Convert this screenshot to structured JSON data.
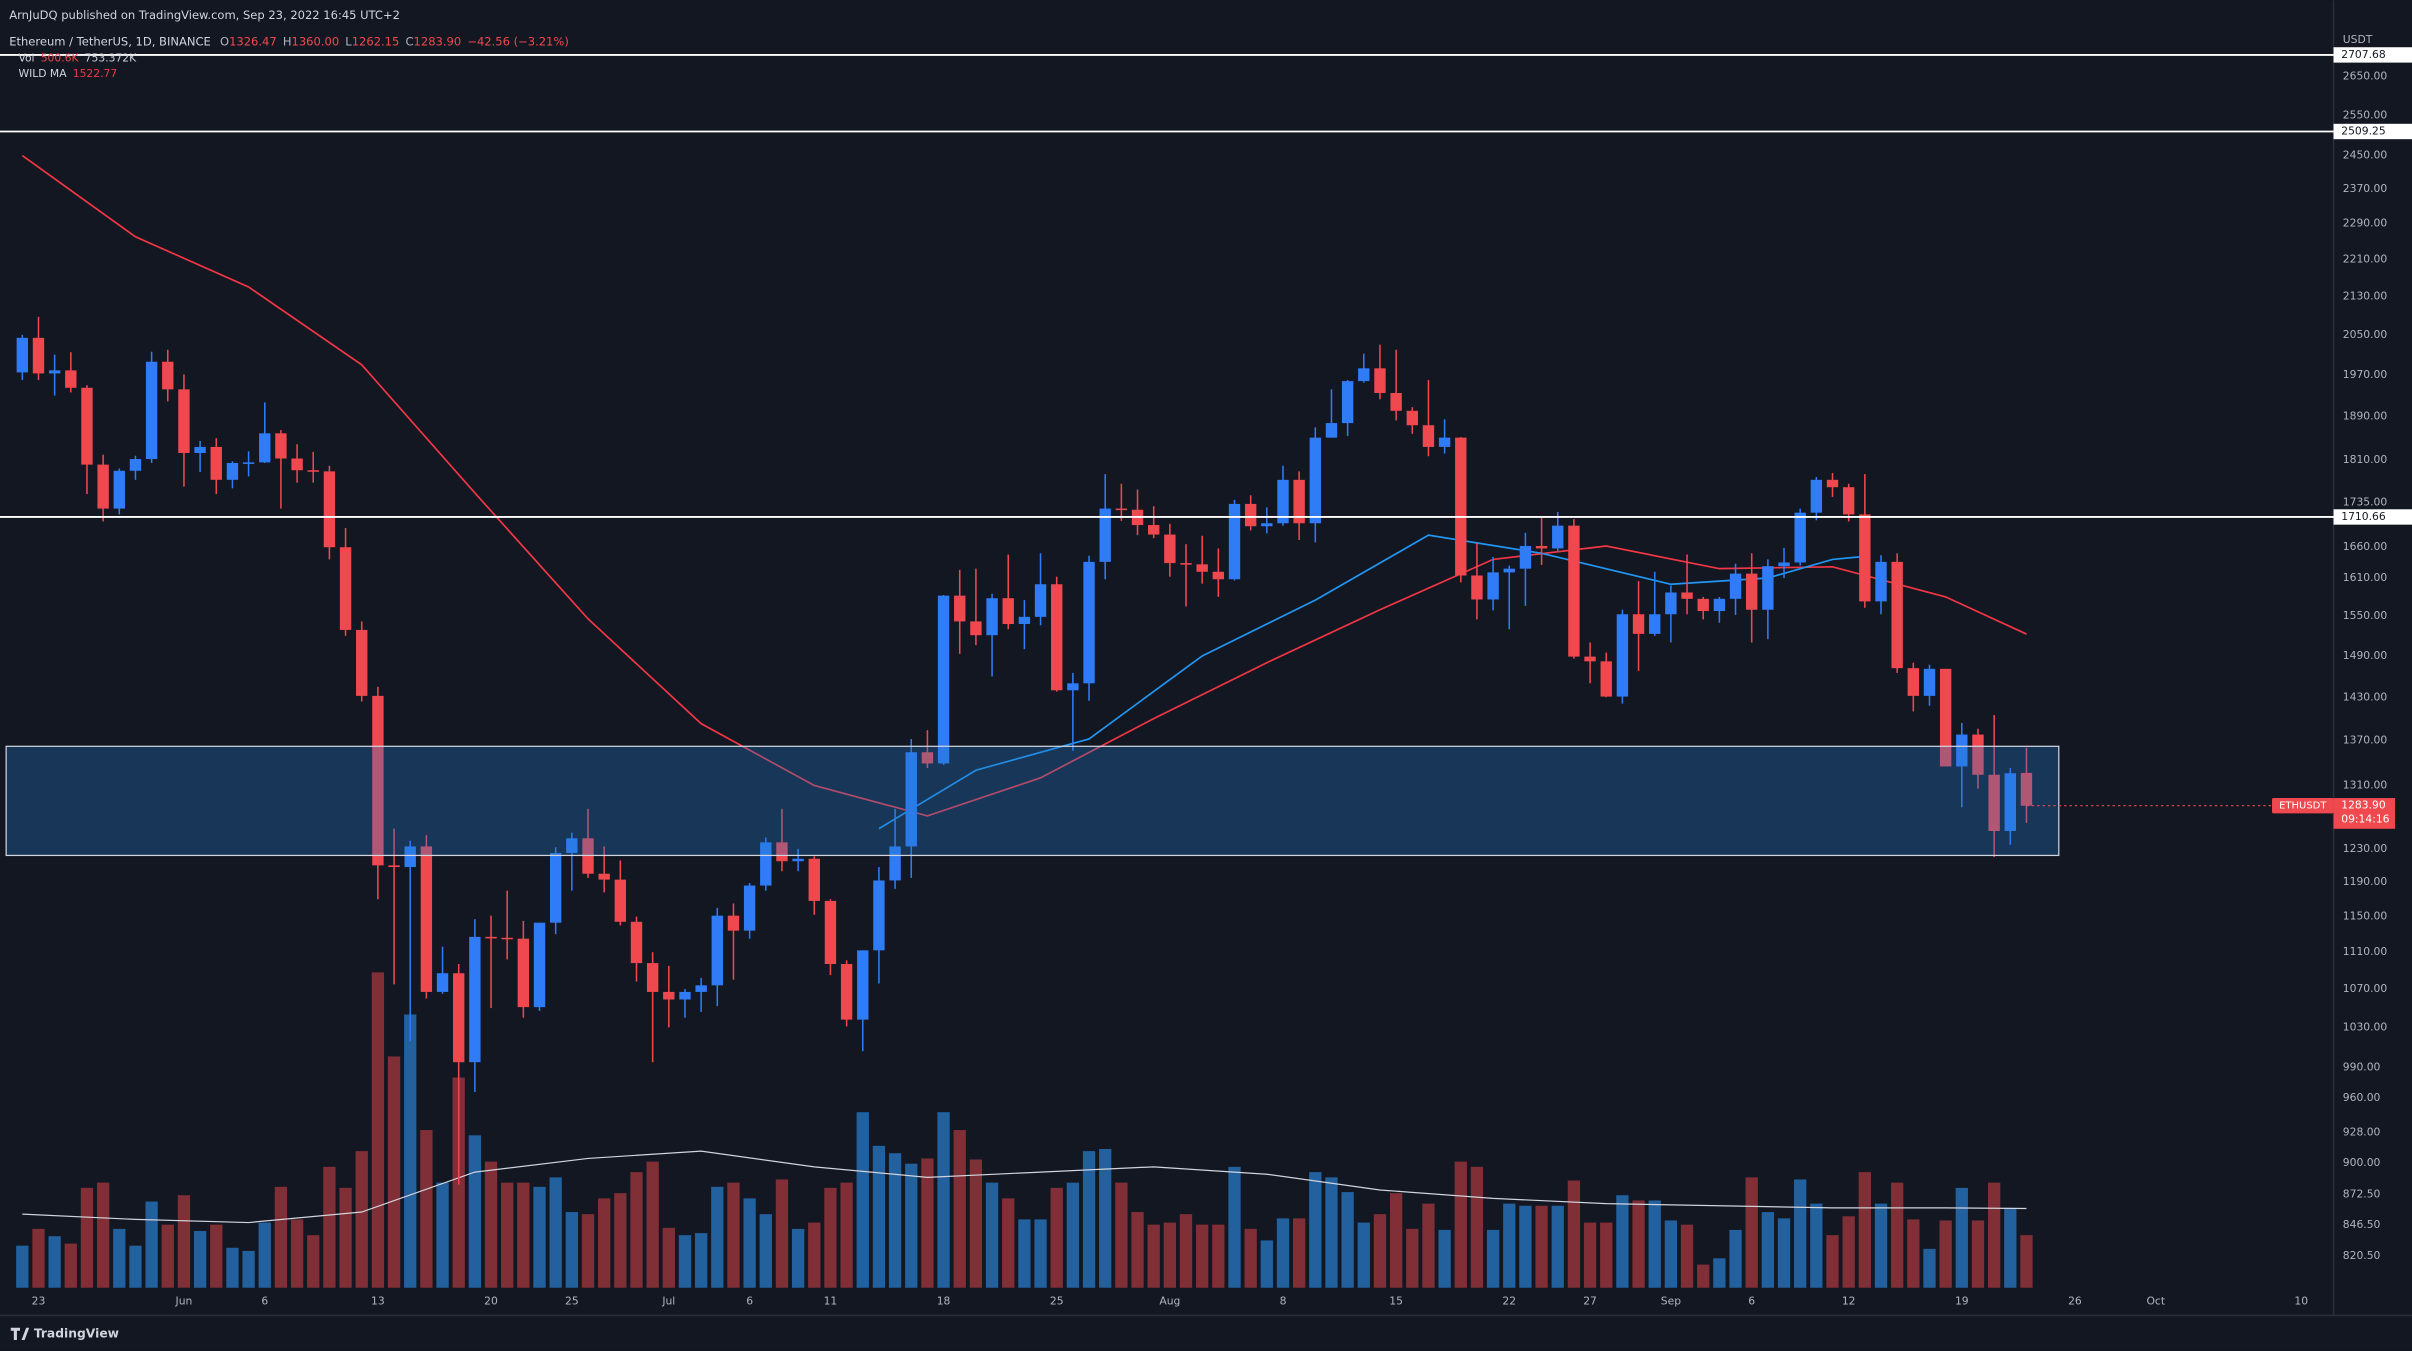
{
  "chart_data": {
    "type": "candlestick",
    "publisher": "ArnJuDQ published on TradingView.com, Sep 23, 2022 16:45 UTC+2",
    "title": "Ethereum / TetherUS, 1D, BINANCE",
    "ohlc_legend": [
      {
        "key": "O",
        "value": "1326.47"
      },
      {
        "key": "H",
        "value": "1360.00"
      },
      {
        "key": "L",
        "value": "1262.15"
      },
      {
        "key": "C",
        "value": "1283.90"
      }
    ],
    "change": "−42.56 (−3.21%)",
    "x": [
      "May 22",
      "May 23",
      "May 24",
      "May 25",
      "May 26",
      "May 27",
      "May 28",
      "May 29",
      "May 30",
      "May 31",
      "Jun 1",
      "Jun 2",
      "Jun 3",
      "Jun 4",
      "Jun 5",
      "Jun 6",
      "Jun 7",
      "Jun 8",
      "Jun 9",
      "Jun 10",
      "Jun 11",
      "Jun 12",
      "Jun 13",
      "Jun 14",
      "Jun 15",
      "Jun 16",
      "Jun 17",
      "Jun 18",
      "Jun 19",
      "Jun 20",
      "Jun 21",
      "Jun 22",
      "Jun 23",
      "Jun 24",
      "Jun 25",
      "Jun 26",
      "Jun 27",
      "Jun 28",
      "Jun 29",
      "Jun 30",
      "Jul 1",
      "Jul 2",
      "Jul 3",
      "Jul 4",
      "Jul 5",
      "Jul 6",
      "Jul 7",
      "Jul 8",
      "Jul 9",
      "Jul 10",
      "Jul 11",
      "Jul 12",
      "Jul 13",
      "Jul 14",
      "Jul 15",
      "Jul 16",
      "Jul 17",
      "Jul 18",
      "Jul 19",
      "Jul 20",
      "Jul 21",
      "Jul 22",
      "Jul 23",
      "Jul 24",
      "Jul 25",
      "Jul 26",
      "Jul 27",
      "Jul 28",
      "Jul 29",
      "Jul 30",
      "Jul 31",
      "Aug 1",
      "Aug 2",
      "Aug 3",
      "Aug 4",
      "Aug 5",
      "Aug 6",
      "Aug 7",
      "Aug 8",
      "Aug 9",
      "Aug 10",
      "Aug 11",
      "Aug 12",
      "Aug 13",
      "Aug 14",
      "Aug 15",
      "Aug 16",
      "Aug 17",
      "Aug 18",
      "Aug 19",
      "Aug 20",
      "Aug 21",
      "Aug 22",
      "Aug 23",
      "Aug 24",
      "Aug 25",
      "Aug 26",
      "Aug 27",
      "Aug 28",
      "Aug 29",
      "Aug 30",
      "Aug 31",
      "Sep 1",
      "Sep 2",
      "Sep 3",
      "Sep 4",
      "Sep 5",
      "Sep 6",
      "Sep 7",
      "Sep 8",
      "Sep 9",
      "Sep 10",
      "Sep 11",
      "Sep 12",
      "Sep 13",
      "Sep 14",
      "Sep 15",
      "Sep 16",
      "Sep 17",
      "Sep 18",
      "Sep 19",
      "Sep 20",
      "Sep 21",
      "Sep 22",
      "Sep 23"
    ],
    "open": [
      1975,
      2044,
      1973,
      1979,
      1945,
      1802,
      1725,
      1791,
      1812,
      1996,
      1942,
      1823,
      1834,
      1775,
      1805,
      1806,
      1859,
      1813,
      1792,
      1790,
      1660,
      1529,
      1432,
      1210,
      1208,
      1233,
      1067,
      1087,
      995,
      1127,
      1126,
      1125,
      1051,
      1143,
      1225,
      1243,
      1200,
      1193,
      1144,
      1098,
      1067,
      1059,
      1067,
      1074,
      1151,
      1134,
      1186,
      1238,
      1215,
      1218,
      1168,
      1097,
      1038,
      1112,
      1192,
      1233,
      1354,
      1339,
      1582,
      1542,
      1521,
      1578,
      1538,
      1549,
      1600,
      1440,
      1450,
      1636,
      1725,
      1723,
      1697,
      1681,
      1634,
      1632,
      1620,
      1608,
      1733,
      1695,
      1700,
      1775,
      1700,
      1851,
      1878,
      1958,
      1983,
      1935,
      1901,
      1874,
      1834,
      1851,
      1614,
      1576,
      1619,
      1625,
      1662,
      1658,
      1696,
      1489,
      1482,
      1431,
      1553,
      1523,
      1553,
      1587,
      1577,
      1558,
      1577,
      1617,
      1560,
      1629,
      1635,
      1718,
      1775,
      1762,
      1715,
      1573,
      1636,
      1472,
      1432,
      1471,
      1335,
      1378,
      1324,
      1252,
      1326.47
    ],
    "high": [
      2050,
      2087,
      2010,
      2015,
      1950,
      1820,
      1795,
      1818,
      2016,
      2020,
      1971,
      1845,
      1850,
      1808,
      1826,
      1917,
      1865,
      1839,
      1825,
      1800,
      1692,
      1542,
      1445,
      1255,
      1240,
      1247,
      1116,
      1097,
      1147,
      1151,
      1180,
      1145,
      1143,
      1232,
      1250,
      1280,
      1233,
      1216,
      1150,
      1110,
      1095,
      1070,
      1082,
      1160,
      1165,
      1189,
      1244,
      1280,
      1230,
      1221,
      1170,
      1101,
      1112,
      1208,
      1280,
      1372,
      1384,
      1583,
      1623,
      1625,
      1585,
      1648,
      1575,
      1650,
      1612,
      1465,
      1646,
      1785,
      1768,
      1758,
      1729,
      1699,
      1665,
      1679,
      1658,
      1740,
      1748,
      1727,
      1800,
      1790,
      1870,
      1942,
      1960,
      2012,
      2030,
      2020,
      1908,
      1960,
      1885,
      1852,
      1667,
      1644,
      1630,
      1684,
      1710,
      1719,
      1707,
      1510,
      1495,
      1560,
      1605,
      1620,
      1598,
      1648,
      1580,
      1580,
      1633,
      1650,
      1640,
      1659,
      1725,
      1780,
      1787,
      1768,
      1785,
      1647,
      1650,
      1480,
      1477,
      1471,
      1394,
      1386,
      1405,
      1333,
      1360
    ],
    "low": [
      1960,
      1960,
      1930,
      1936,
      1750,
      1703,
      1715,
      1775,
      1805,
      1919,
      1763,
      1789,
      1750,
      1760,
      1781,
      1805,
      1725,
      1770,
      1770,
      1640,
      1520,
      1424,
      1170,
      1075,
      1016,
      1060,
      1065,
      881,
      966,
      1050,
      1102,
      1040,
      1047,
      1130,
      1180,
      1195,
      1178,
      1140,
      1078,
      995,
      1030,
      1040,
      1046,
      1052,
      1080,
      1125,
      1180,
      1203,
      1203,
      1152,
      1085,
      1031,
      1006,
      1076,
      1182,
      1195,
      1333,
      1337,
      1493,
      1506,
      1460,
      1530,
      1500,
      1536,
      1438,
      1356,
      1425,
      1608,
      1704,
      1680,
      1675,
      1612,
      1565,
      1601,
      1580,
      1606,
      1688,
      1683,
      1696,
      1672,
      1668,
      1851,
      1854,
      1955,
      1923,
      1883,
      1858,
      1817,
      1822,
      1603,
      1545,
      1559,
      1530,
      1566,
      1631,
      1652,
      1486,
      1450,
      1430,
      1421,
      1468,
      1520,
      1510,
      1553,
      1545,
      1540,
      1552,
      1510,
      1515,
      1610,
      1630,
      1705,
      1745,
      1703,
      1563,
      1553,
      1465,
      1410,
      1418,
      1335,
      1282,
      1306,
      1220,
      1235,
      1262.15
    ],
    "close": [
      2044,
      1973,
      1979,
      1945,
      1802,
      1725,
      1791,
      1812,
      1996,
      1942,
      1823,
      1834,
      1775,
      1805,
      1806,
      1859,
      1813,
      1792,
      1790,
      1660,
      1529,
      1432,
      1210,
      1208,
      1233,
      1067,
      1087,
      995,
      1127,
      1126,
      1125,
      1051,
      1143,
      1225,
      1243,
      1200,
      1193,
      1144,
      1098,
      1067,
      1059,
      1067,
      1074,
      1151,
      1134,
      1186,
      1238,
      1215,
      1218,
      1168,
      1097,
      1038,
      1112,
      1192,
      1233,
      1354,
      1339,
      1582,
      1542,
      1521,
      1578,
      1538,
      1549,
      1600,
      1440,
      1450,
      1636,
      1725,
      1723,
      1697,
      1681,
      1634,
      1632,
      1620,
      1608,
      1733,
      1695,
      1700,
      1775,
      1700,
      1851,
      1878,
      1958,
      1983,
      1935,
      1901,
      1874,
      1834,
      1851,
      1614,
      1576,
      1619,
      1625,
      1662,
      1658,
      1696,
      1489,
      1482,
      1431,
      1553,
      1523,
      1553,
      1587,
      1577,
      1558,
      1577,
      1617,
      1560,
      1629,
      1635,
      1718,
      1775,
      1762,
      1715,
      1573,
      1636,
      1472,
      1432,
      1471,
      1335,
      1378,
      1324,
      1252,
      1326,
      1283.9
    ],
    "volume_name": "Vol",
    "volume": [
      400000,
      560000,
      490000,
      420000,
      950000,
      1000000,
      560000,
      400000,
      820000,
      600000,
      880000,
      540000,
      600000,
      380000,
      350000,
      620000,
      960000,
      650000,
      500000,
      1150000,
      950000,
      1300000,
      3000000,
      2200000,
      2600000,
      1500000,
      1000000,
      2000000,
      1450000,
      1200000,
      1000000,
      1000000,
      960000,
      1050000,
      720000,
      700000,
      850000,
      900000,
      1100000,
      1200000,
      570000,
      500000,
      520000,
      960000,
      1000000,
      850000,
      700000,
      1030000,
      560000,
      620000,
      950000,
      1000000,
      1670000,
      1350000,
      1280000,
      1180000,
      1230000,
      1670000,
      1500000,
      1220000,
      1000000,
      850000,
      650000,
      650000,
      950000,
      1000000,
      1300000,
      1320000,
      1000000,
      720000,
      600000,
      620000,
      700000,
      600000,
      600000,
      1150000,
      560000,
      450000,
      660000,
      660000,
      1100000,
      1050000,
      910000,
      620000,
      700000,
      900000,
      560000,
      800000,
      550000,
      1200000,
      1150000,
      550000,
      800000,
      780000,
      780000,
      780000,
      1020000,
      620000,
      620000,
      880000,
      830000,
      830000,
      640000,
      600000,
      220000,
      280000,
      550000,
      1050000,
      720000,
      660000,
      1030000,
      800000,
      500000,
      680000,
      1100000,
      800000,
      1000000,
      650000,
      370000,
      640000,
      950000,
      640000,
      1000000,
      760000,
      500600
    ],
    "volume_legend": [
      "500.6K",
      "753.372K"
    ],
    "volume_ma": {
      "color": "#d1d4dc",
      "x": [
        "May 22",
        "May 29",
        "Jun 5",
        "Jun 12",
        "Jun 19",
        "Jun 26",
        "Jul 3",
        "Jul 10",
        "Jul 17",
        "Jul 24",
        "Jul 31",
        "Aug 7",
        "Aug 14",
        "Aug 21",
        "Aug 28",
        "Sep 4",
        "Sep 11",
        "Sep 18",
        "Sep 23"
      ],
      "values": [
        700000,
        650000,
        620000,
        720000,
        1100000,
        1230000,
        1300000,
        1150000,
        1050000,
        1100000,
        1150000,
        1080000,
        930000,
        850000,
        800000,
        780000,
        760000,
        760000,
        753372
      ]
    },
    "moving_averages": [
      {
        "name": "WILD MA",
        "color": "#f23645",
        "x": [
          "May 22",
          "May 29",
          "Jun 5",
          "Jun 12",
          "Jun 19",
          "Jun 26",
          "Jul 3",
          "Jul 10",
          "Jul 17",
          "Jul 24",
          "Jul 31",
          "Aug 7",
          "Aug 14",
          "Aug 21",
          "Aug 28",
          "Sep 4",
          "Sep 11",
          "Sep 18",
          "Sep 23"
        ],
        "values": [
          2450,
          2260,
          2150,
          1990,
          1752,
          1546,
          1393,
          1310,
          1271,
          1320,
          1400,
          1480,
          1560,
          1640,
          1662,
          1625,
          1628,
          1580,
          1522.77
        ]
      },
      {
        "color": "#2196f3",
        "x": [
          "Jul 14",
          "Jul 20",
          "Jul 27",
          "Aug 3",
          "Aug 10",
          "Aug 17",
          "Aug 24",
          "Sep 1",
          "Sep 7",
          "Sep 11",
          "Sep 13"
        ],
        "values": [
          1255,
          1330,
          1372,
          1490,
          1575,
          1680,
          1650,
          1600,
          1610,
          1640,
          1645
        ]
      }
    ],
    "up_color": "#2f7cf6",
    "down_color": "#f0484f",
    "volume_up_color": "#22609e",
    "volume_down_color": "#7f2f35",
    "log_scale": true,
    "y_unit": "USDT",
    "ylim": [
      794,
      2859
    ],
    "yticks": [
      {
        "value": 2650,
        "label": "2650.00"
      },
      {
        "value": 2550,
        "label": "2550.00"
      },
      {
        "value": 2450,
        "label": "2450.00"
      },
      {
        "value": 2370,
        "label": "2370.00"
      },
      {
        "value": 2290,
        "label": "2290.00"
      },
      {
        "value": 2210,
        "label": "2210.00"
      },
      {
        "value": 2130,
        "label": "2130.00"
      },
      {
        "value": 2050,
        "label": "2050.00"
      },
      {
        "value": 1970,
        "label": "1970.00"
      },
      {
        "value": 1890,
        "label": "1890.00"
      },
      {
        "value": 1810,
        "label": "1810.00"
      },
      {
        "value": 1735,
        "label": "1735.00"
      },
      {
        "value": 1660,
        "label": "1660.00"
      },
      {
        "value": 1610,
        "label": "1610.00"
      },
      {
        "value": 1550,
        "label": "1550.00"
      },
      {
        "value": 1490,
        "label": "1490.00"
      },
      {
        "value": 1430,
        "label": "1430.00"
      },
      {
        "value": 1370,
        "label": "1370.00"
      },
      {
        "value": 1310,
        "label": "1310.00"
      },
      {
        "value": 1230,
        "label": "1230.00"
      },
      {
        "value": 1190,
        "label": "1190.00"
      },
      {
        "value": 1150,
        "label": "1150.00"
      },
      {
        "value": 1110,
        "label": "1110.00"
      },
      {
        "value": 1070,
        "label": "1070.00"
      },
      {
        "value": 1030,
        "label": "1030.00"
      },
      {
        "value": 990,
        "label": "990.00"
      },
      {
        "value": 960,
        "label": "960.00"
      },
      {
        "value": 928,
        "label": "928.00"
      },
      {
        "value": 900,
        "label": "900.00"
      },
      {
        "value": 872.5,
        "label": "872.50"
      },
      {
        "value": 846.5,
        "label": "846.50"
      },
      {
        "value": 820.5,
        "label": "820.50"
      }
    ],
    "xlim": [
      "May 21",
      "Oct 12"
    ],
    "xticks": [
      {
        "value": "May 23",
        "label": "23"
      },
      {
        "value": "Jun 1",
        "label": "Jun"
      },
      {
        "value": "Jun 6",
        "label": "6"
      },
      {
        "value": "Jun 13",
        "label": "13"
      },
      {
        "value": "Jun 20",
        "label": "20"
      },
      {
        "value": "Jun 25",
        "label": "25"
      },
      {
        "value": "Jul 1",
        "label": "Jul"
      },
      {
        "value": "Jul 6",
        "label": "6"
      },
      {
        "value": "Jul 11",
        "label": "11"
      },
      {
        "value": "Jul 18",
        "label": "18"
      },
      {
        "value": "Jul 25",
        "label": "25"
      },
      {
        "value": "Aug 1",
        "label": "Aug"
      },
      {
        "value": "Aug 8",
        "label": "8"
      },
      {
        "value": "Aug 15",
        "label": "15"
      },
      {
        "value": "Aug 22",
        "label": "22"
      },
      {
        "value": "Aug 27",
        "label": "27"
      },
      {
        "value": "Sep 1",
        "label": "Sep"
      },
      {
        "value": "Sep 6",
        "label": "6"
      },
      {
        "value": "Sep 12",
        "label": "12"
      },
      {
        "value": "Sep 19",
        "label": "19"
      },
      {
        "value": "Sep 26",
        "label": "26"
      },
      {
        "value": "Oct 1",
        "label": "Oct"
      },
      {
        "value": "Oct 10",
        "label": "10"
      }
    ],
    "levels": [
      2707.68,
      2509.25,
      1710.66
    ],
    "zone": {
      "top": 1362,
      "bottom": 1222,
      "x": [
        "May 21",
        "Sep 25"
      ]
    },
    "symbol": "ETHUSDT",
    "last_price": {
      "value": 1283.9,
      "label": "1283.90"
    },
    "countdown": "09:14:16",
    "brand": "TradingView"
  }
}
